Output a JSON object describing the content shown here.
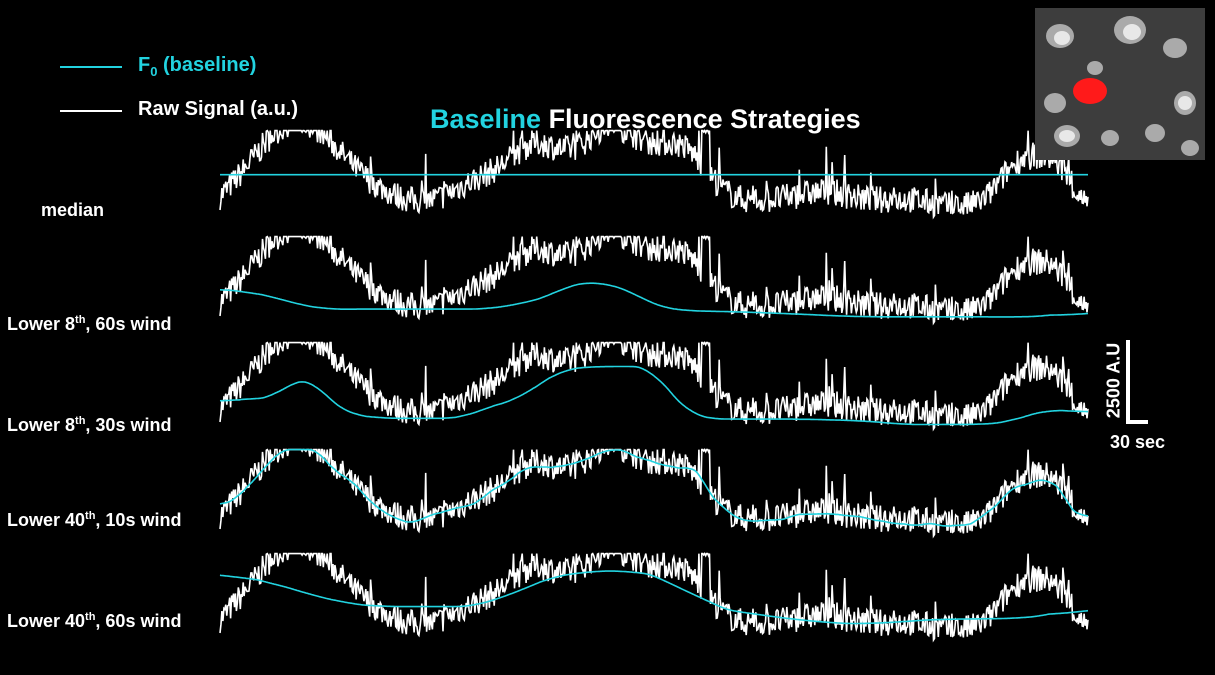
{
  "legend": {
    "baseline_prefix": "F",
    "baseline_sub": "0",
    "baseline_suffix": " (baseline)",
    "raw_label": "Raw Signal (a.u.)"
  },
  "title": {
    "highlight": "Baseline",
    "rest": " Fluorescence Strategies"
  },
  "rows": [
    {
      "label_pre": "median",
      "label_sup": "",
      "label_post": ""
    },
    {
      "label_pre": "Lower 8",
      "label_sup": "th",
      "label_post": ", 60s wind"
    },
    {
      "label_pre": "Lower 8",
      "label_sup": "th",
      "label_post": ", 30s wind"
    },
    {
      "label_pre": "Lower 40",
      "label_sup": "th",
      "label_post": ", 10s wind"
    },
    {
      "label_pre": "Lower 40",
      "label_sup": "th",
      "label_post": ", 60s wind"
    }
  ],
  "scale_bar": {
    "amplitude_label": "2500 A.U",
    "time_label": "30 sec"
  },
  "colors": {
    "baseline": "#22d3e0",
    "raw": "#ffffff",
    "background": "#000000",
    "roi": "#ff1a1a"
  },
  "chart_data": {
    "type": "line",
    "title": "Baseline Fluorescence Strategies",
    "panels": [
      {
        "name": "median",
        "baseline_method": "median"
      },
      {
        "name": "Lower 8th, 60s wind",
        "baseline_method": "percentile-window",
        "percentile": 8,
        "window_s": 60
      },
      {
        "name": "Lower 8th, 30s wind",
        "baseline_method": "percentile-window",
        "percentile": 8,
        "window_s": 30
      },
      {
        "name": "Lower 40th, 10s wind",
        "baseline_method": "percentile-window",
        "percentile": 40,
        "window_s": 10
      },
      {
        "name": "Lower 40th, 60s wind",
        "baseline_method": "percentile-window",
        "percentile": 40,
        "window_s": 60
      }
    ],
    "series": [
      {
        "name": "F0 (baseline)",
        "color": "#22d3e0"
      },
      {
        "name": "Raw Signal (a.u.)",
        "color": "#ffffff"
      }
    ],
    "scale_bar": {
      "amplitude": 2500,
      "amplitude_unit": "A.U",
      "time": 30,
      "time_unit": "sec"
    },
    "axes_shown": false,
    "grid": false,
    "legend_position": "top-left"
  }
}
